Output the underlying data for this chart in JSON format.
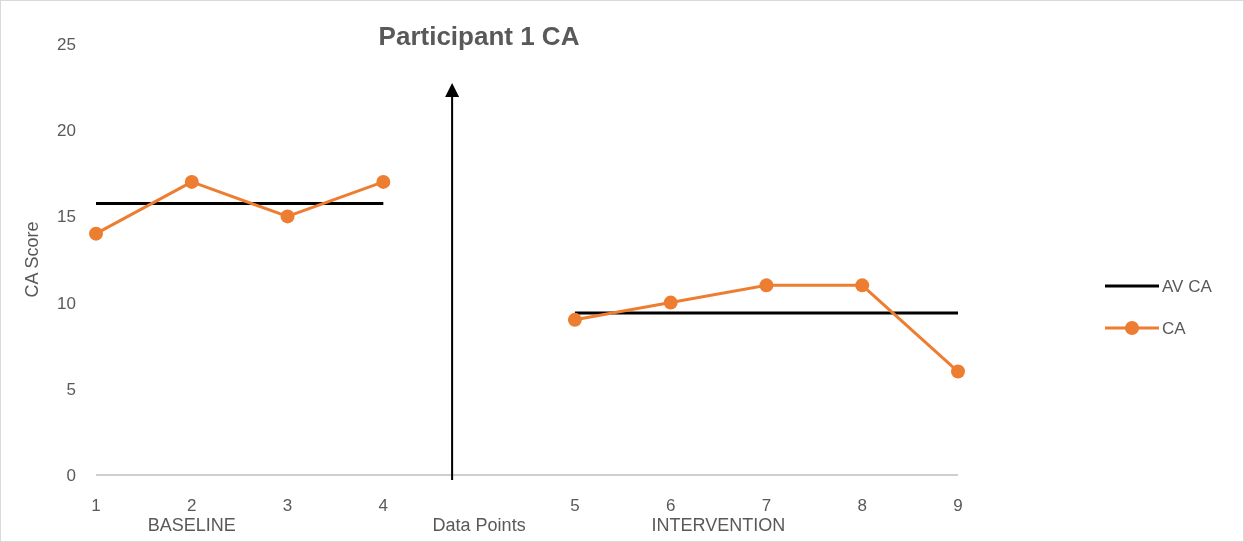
{
  "chart_data": {
    "type": "line",
    "title": "Participant 1 CA",
    "xlabel": "Data Points",
    "ylabel": "CA Score",
    "categories": [
      "1",
      "2",
      "3",
      "4",
      null,
      "5",
      "6",
      "7",
      "8",
      "9"
    ],
    "series": [
      {
        "name": "AV CA",
        "color": "#000000",
        "marker": "none",
        "values": [
          15.75,
          15.75,
          15.75,
          15.75,
          null,
          9.4,
          9.4,
          9.4,
          9.4,
          9.4
        ]
      },
      {
        "name": "CA",
        "color": "#ed7d31",
        "marker": "circle",
        "values": [
          14,
          17,
          15,
          17,
          null,
          9,
          10,
          11,
          11,
          6
        ]
      }
    ],
    "ylim": [
      0,
      25
    ],
    "yticks": [
      0,
      5,
      10,
      15,
      20,
      25
    ],
    "grid": false,
    "legend": "right",
    "annotations": [
      "BASELINE",
      "INTERVENTION"
    ]
  }
}
